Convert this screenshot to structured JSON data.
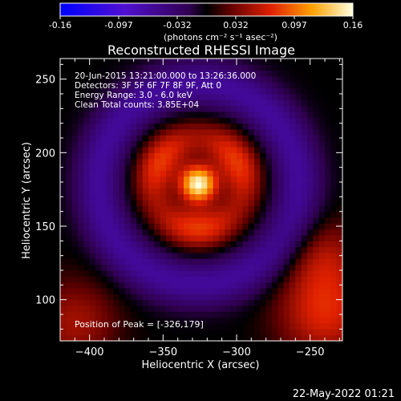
{
  "colorbar": {
    "min": -0.16,
    "max": 0.16,
    "tick_labels": [
      "-0.16",
      "-0.097",
      "-0.032",
      "0.032",
      "0.097",
      "0.16"
    ],
    "unit_label": "(photons cm⁻² s⁻¹ asec⁻²)"
  },
  "chart_data": {
    "type": "heatmap",
    "title": "Reconstructed RHESSI Image",
    "xlabel": "Heliocentric X (arcsec)",
    "ylabel": "Heliocentric Y (arcsec)",
    "xlim": [
      -420,
      -228
    ],
    "ylim": [
      72,
      264
    ],
    "x_ticks": [
      -400,
      -350,
      -300,
      -250
    ],
    "y_ticks": [
      100,
      150,
      200,
      250
    ],
    "x_tick_labels": [
      "−400",
      "−350",
      "−300",
      "−250"
    ],
    "y_tick_labels": [
      "100",
      "150",
      "200",
      "250"
    ],
    "peak": {
      "x": -326,
      "y": 179,
      "value": 0.16
    },
    "info_lines": [
      "20-Jun-2015 13:21:00.000 to 13:26:36.000",
      "Detectors: 3F 5F 6F 7F 8F 9F, Att 0",
      "Energy Range: 3.0 - 6.0 keV",
      "Clean     Total counts: 3.85E+04"
    ],
    "peak_label": "Position of Peak = [-326,179]"
  },
  "footer": {
    "timestamp": "22-May-2022 01:21"
  }
}
